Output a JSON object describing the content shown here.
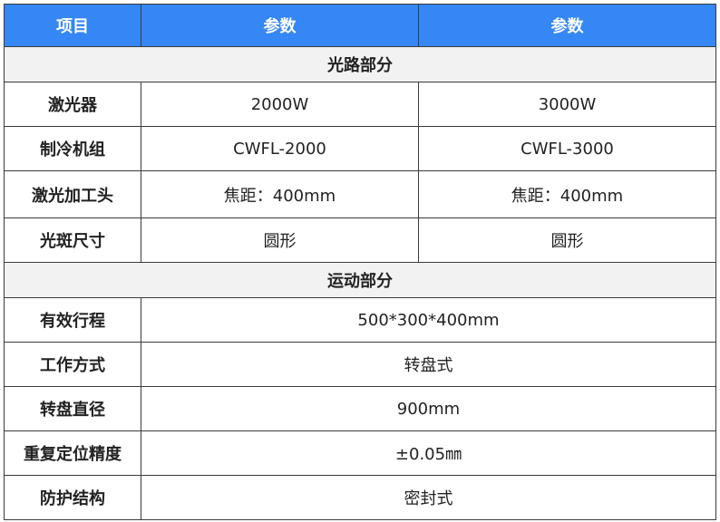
{
  "header": {
    "col1": "项目",
    "col2": "参数",
    "col3": "参数"
  },
  "accent_color": "#3587f5",
  "sections": [
    {
      "title": "光路部分",
      "rows": [
        {
          "label": "激光器",
          "v1": "2000W",
          "v2": "3000W"
        },
        {
          "label": "制冷机组",
          "v1": "CWFL-2000",
          "v2": "CWFL-3000"
        },
        {
          "label": "激光加工头",
          "v1": "焦距：400mm",
          "v2": "焦距：400mm"
        },
        {
          "label": "光斑尺寸",
          "v1": "圆形",
          "v2": "圆形"
        }
      ]
    },
    {
      "title": "运动部分",
      "rows": [
        {
          "label": "有效行程",
          "v": "500*300*400mm"
        },
        {
          "label": "工作方式",
          "v": "转盘式"
        },
        {
          "label": "转盘直径",
          "v": "900mm"
        },
        {
          "label": "重复定位精度",
          "v": "±0.05㎜"
        },
        {
          "label": "防护结构",
          "v": "密封式"
        }
      ]
    }
  ]
}
